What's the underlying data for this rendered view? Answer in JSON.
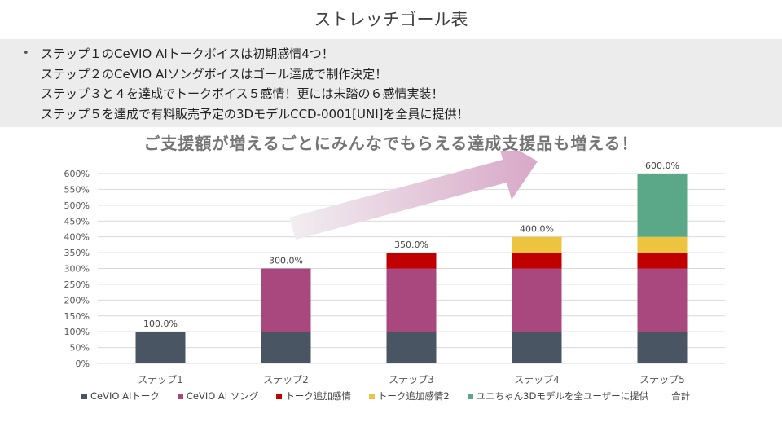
{
  "slide": {
    "title": "ストレッチゴール表",
    "bullets": [
      "ステップ１のCeVIO AIトークボイスは初期感情4つ！",
      "ステップ２のCeVIO AIソングボイスはゴール達成で制作決定！",
      "ステップ３と４を達成でトークボイス５感情！更には未踏の６感情実装！",
      "ステップ５を達成で有料販売予定の3DモデルCCD-0001[UNI]を全員に提供！"
    ],
    "bullet_marker": "•",
    "headline": "ご支援額が増えるごとにみんなでもらえる達成支援品も増える！"
  },
  "colors": {
    "talk": "#4a5563",
    "song": "#a8487e",
    "talk_extra": "#c00000",
    "talk_extra2": "#ecc440",
    "model3d": "#5aa887",
    "arrow_start": "#f2eef1",
    "arrow_end": "#d8a8c8",
    "grid": "#d9d9d9"
  },
  "chart_data": {
    "type": "bar",
    "stacked": true,
    "categories": [
      "ステップ1",
      "ステップ2",
      "ステップ3",
      "ステップ4",
      "ステップ5"
    ],
    "series": [
      {
        "name": "CeVIO AIトーク",
        "key": "talk",
        "values": [
          100,
          100,
          100,
          100,
          100
        ]
      },
      {
        "name": "CeVIO AI ソング",
        "key": "song",
        "values": [
          0,
          200,
          200,
          200,
          200
        ]
      },
      {
        "name": "トーク追加感情",
        "key": "talk_extra",
        "values": [
          0,
          0,
          50,
          50,
          50
        ]
      },
      {
        "name": "トーク追加感情2",
        "key": "talk_extra2",
        "values": [
          0,
          0,
          0,
          50,
          50
        ]
      },
      {
        "name": "ユニちゃん3Dモデルを全ユーザーに提供",
        "key": "model3d",
        "values": [
          0,
          0,
          0,
          0,
          200
        ]
      }
    ],
    "total_series_name": "合計",
    "totals": [
      100,
      300,
      350,
      400,
      600
    ],
    "total_labels": [
      "100.0%",
      "300.0%",
      "350.0%",
      "400.0%",
      "600.0%"
    ],
    "ylim": [
      0,
      600
    ],
    "yticks": [
      0,
      50,
      100,
      150,
      200,
      250,
      300,
      350,
      400,
      450,
      500,
      550,
      600
    ],
    "ytick_labels": [
      "0%",
      "50%",
      "100%",
      "150%",
      "200%",
      "250%",
      "300%",
      "350%",
      "400%",
      "450%",
      "500%",
      "550%",
      "600%"
    ],
    "grid": true,
    "legend": "bottom",
    "title": "",
    "xlabel": "",
    "ylabel": ""
  }
}
